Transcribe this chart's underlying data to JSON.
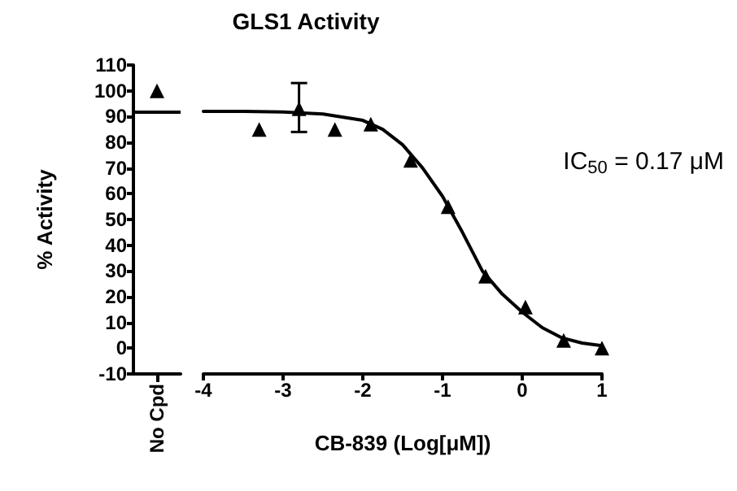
{
  "chart_data": [
    {
      "type": "scatter",
      "categories": [
        "No Cpd"
      ],
      "values": [
        100
      ],
      "color": "#000000",
      "marker": "triangle",
      "ylabel": "% Activity",
      "ylim": [
        -10,
        110
      ],
      "yticks": [
        -10,
        0,
        10,
        20,
        30,
        40,
        50,
        60,
        70,
        80,
        90,
        100,
        110
      ],
      "ref_lines": [
        {
          "axis": "y",
          "value": 92,
          "color": "#000000"
        }
      ]
    },
    {
      "type": "scatter",
      "title": "GLS1 Activity",
      "xlabel": "CB-839 (Log[μM])",
      "annotations": [
        "IC$_{50}$ = 0.17 μM"
      ],
      "xlim": [
        -4,
        1
      ],
      "xticks": [
        -4,
        -3,
        -2,
        -1,
        0,
        1
      ],
      "ylim": [
        -10,
        110
      ],
      "tick_labels": "x",
      "series": [
        {
          "type": "scatter",
          "color": "#000000",
          "marker": "triangle",
          "x": [
            -3.3,
            -2.8,
            -2.35,
            -1.9,
            -1.4,
            -0.93,
            -0.46,
            0.04,
            0.52,
            1.0
          ],
          "values": [
            85,
            93,
            85,
            87,
            73,
            55,
            28,
            16,
            3,
            0
          ],
          "errors": [
            null,
            [
              84,
              103
            ],
            null,
            null,
            null,
            null,
            null,
            null,
            null,
            null
          ]
        },
        {
          "type": "line",
          "color": "#000000",
          "marker": "none",
          "x": [
            -4,
            -3.5,
            -3,
            -2.5,
            -2,
            -1.75,
            -1.5,
            -1.25,
            -1,
            -0.75,
            -0.5,
            -0.25,
            0,
            0.25,
            0.5,
            0.75,
            1
          ],
          "values": [
            92,
            92,
            91.8,
            91,
            88.5,
            85,
            79,
            70,
            59,
            45,
            30,
            21,
            14,
            8,
            4,
            2,
            1
          ]
        }
      ]
    }
  ]
}
